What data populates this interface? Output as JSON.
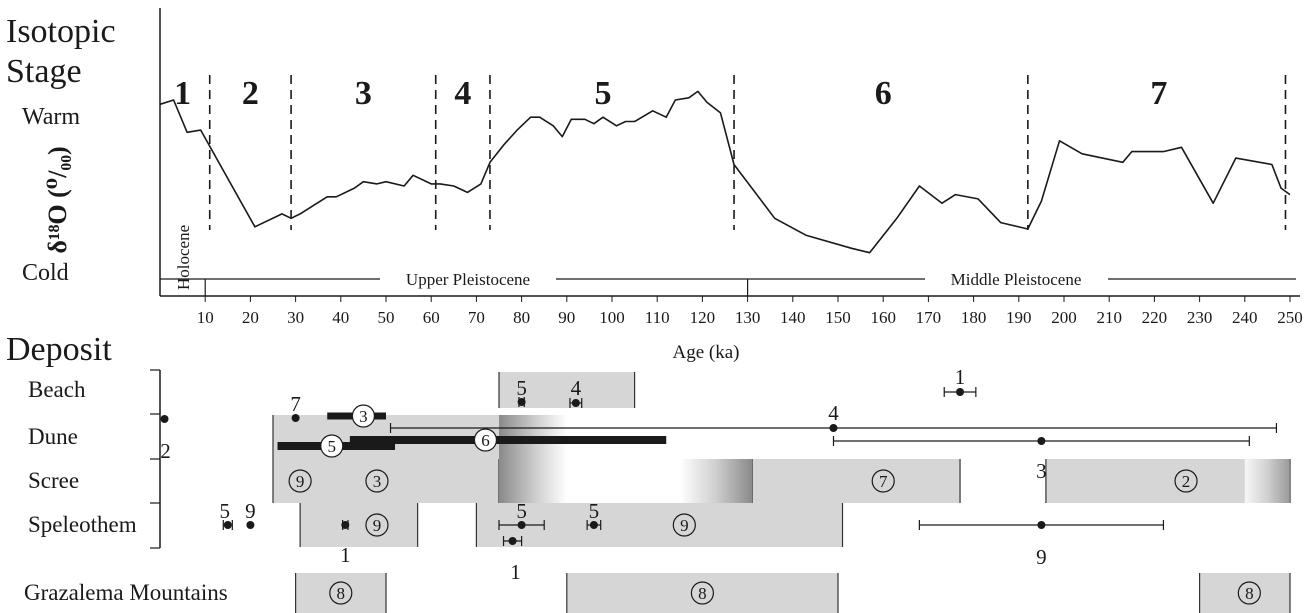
{
  "chart_data": {
    "type": "line",
    "headings": {
      "isotopic_stage": [
        "Isotopic",
        "Stage"
      ],
      "deposit": "Deposit",
      "warm": "Warm",
      "cold": "Cold",
      "yaxis": "δ¹⁸O (⁰/₀₀)"
    },
    "xlabel": "Age (ka)",
    "xlim": [
      0,
      250
    ],
    "xticks": [
      "10",
      "20",
      "30",
      "40",
      "50",
      "60",
      "70",
      "80",
      "90",
      "100",
      "110",
      "120",
      "130",
      "140",
      "150",
      "160",
      "170",
      "180",
      "190",
      "200",
      "210",
      "220",
      "230",
      "240",
      "250"
    ],
    "stage_boundaries": [
      11,
      29,
      61,
      73,
      127,
      192,
      249
    ],
    "stages": [
      {
        "label": "1",
        "x": 5
      },
      {
        "label": "2",
        "x": 20
      },
      {
        "label": "3",
        "x": 45
      },
      {
        "label": "4",
        "x": 67
      },
      {
        "label": "5",
        "x": 98
      },
      {
        "label": "6",
        "x": 160
      },
      {
        "label": "7",
        "x": 221
      }
    ],
    "epochs": {
      "holocene": "Holocene",
      "upper_pleistocene": "Upper Pleistocene",
      "middle_pleistocene": "Middle Pleistocene",
      "divisions": [
        10,
        130
      ]
    },
    "isotope_curve": {
      "x": [
        0,
        3,
        6,
        9,
        21,
        27,
        29,
        31,
        34,
        37,
        39,
        43,
        45,
        48,
        50,
        54,
        56,
        60,
        62,
        65,
        68,
        71,
        73,
        76,
        79,
        82,
        84,
        87,
        89,
        91,
        94,
        96,
        98,
        101,
        103,
        105,
        109,
        112,
        114,
        117,
        119,
        121,
        124,
        127,
        136,
        143,
        153,
        157,
        163,
        168,
        173,
        176,
        181,
        186,
        192,
        195,
        199,
        204,
        213,
        215,
        222,
        226,
        233,
        238,
        246,
        248,
        250
      ],
      "y": [
        0.78,
        0.8,
        0.65,
        0.66,
        0.21,
        0.27,
        0.25,
        0.27,
        0.31,
        0.35,
        0.35,
        0.39,
        0.42,
        0.41,
        0.42,
        0.4,
        0.45,
        0.41,
        0.41,
        0.4,
        0.37,
        0.41,
        0.51,
        0.59,
        0.66,
        0.72,
        0.72,
        0.68,
        0.63,
        0.71,
        0.71,
        0.69,
        0.72,
        0.68,
        0.7,
        0.7,
        0.75,
        0.72,
        0.8,
        0.81,
        0.84,
        0.79,
        0.74,
        0.5,
        0.25,
        0.17,
        0.11,
        0.09,
        0.25,
        0.4,
        0.32,
        0.36,
        0.34,
        0.23,
        0.2,
        0.33,
        0.61,
        0.55,
        0.51,
        0.56,
        0.56,
        0.58,
        0.32,
        0.53,
        0.5,
        0.39,
        0.36
      ]
    },
    "deposit_rows": [
      "Beach",
      "Dune",
      "Scree",
      "Speleothem",
      "Grazalema Mountains"
    ],
    "ranges": [
      {
        "row": "Beach",
        "from": 75,
        "to": 105
      },
      {
        "row": "Dune",
        "from": 25,
        "to": 80
      },
      {
        "row": "Scree",
        "from": 25,
        "to": 75
      },
      {
        "row": "Scree",
        "from": 131,
        "to": 177
      },
      {
        "row": "Scree",
        "from": 196,
        "to": 250
      },
      {
        "row": "Speleothem",
        "from": 31,
        "to": 57
      },
      {
        "row": "Speleothem",
        "from": 70,
        "to": 151
      },
      {
        "row": "Grazalema Mountains",
        "from": 30,
        "to": 50
      },
      {
        "row": "Grazalema Mountains",
        "from": 90,
        "to": 150
      },
      {
        "row": "Grazalema Mountains",
        "from": 230,
        "to": 250
      }
    ],
    "dated_bars": [
      {
        "label": "3",
        "from": 37,
        "to": 50
      },
      {
        "label": "5",
        "from": 26,
        "to": 52
      },
      {
        "label": "6",
        "from": 42,
        "to": 112
      }
    ],
    "points": [
      {
        "row": "Beach",
        "label": "5",
        "x": 80,
        "err": 0.6
      },
      {
        "row": "Beach",
        "label": "4",
        "x": 92,
        "err": 1.3
      },
      {
        "row": "Beach",
        "label": "1",
        "x": 177,
        "err": 3.5
      },
      {
        "row": "Dune",
        "label": "7",
        "x": 30,
        "err": 0
      },
      {
        "row": "Dune",
        "label": "2",
        "x": 1,
        "err": 0
      },
      {
        "row": "Dune",
        "label": "4",
        "x": 149,
        "err": 98
      },
      {
        "row": "Dune",
        "label": "3",
        "x": 195,
        "err": 46
      },
      {
        "row": "Speleothem",
        "label": "5",
        "x": 15,
        "err": 1
      },
      {
        "row": "Speleothem",
        "label": "9",
        "x": 20,
        "err": 0
      },
      {
        "row": "Speleothem",
        "label": "1",
        "x": 41,
        "err": 0.6
      },
      {
        "row": "Speleothem",
        "label": "5",
        "x": 80,
        "err": 5
      },
      {
        "row": "Speleothem",
        "label": "5",
        "x": 96,
        "err": 1.5
      },
      {
        "row": "Speleothem",
        "label": "1",
        "x": 78,
        "err": 2
      },
      {
        "row": "Speleothem",
        "label": "9",
        "x": 195,
        "err": 27
      }
    ],
    "circled_labels": [
      {
        "row": "Scree",
        "label": "9",
        "x": 31
      },
      {
        "row": "Scree",
        "label": "3",
        "x": 48
      },
      {
        "row": "Scree",
        "label": "7",
        "x": 160
      },
      {
        "row": "Scree",
        "label": "2",
        "x": 227
      },
      {
        "row": "Speleothem",
        "label": "9",
        "x": 48
      },
      {
        "row": "Speleothem",
        "label": "9",
        "x": 116
      },
      {
        "row": "Grazalema Mountains",
        "label": "8",
        "x": 40
      },
      {
        "row": "Grazalema Mountains",
        "label": "8",
        "x": 120
      },
      {
        "row": "Grazalema Mountains",
        "label": "8",
        "x": 241
      }
    ],
    "colors": {
      "ink": "#1a1a1a",
      "range_fill": "#d6d6d6",
      "range_edge": "#333333"
    }
  }
}
